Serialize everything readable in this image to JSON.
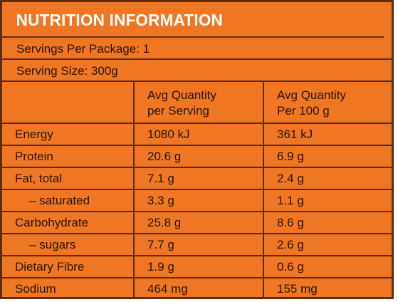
{
  "title": "NUTRITION INFORMATION",
  "servings_per_package": "Servings Per Package: 1",
  "serving_size": "Serving Size: 300g",
  "columns": [
    [
      "Avg Quantity",
      "per Serving"
    ],
    [
      "Avg Quantity",
      "Per 100 g"
    ]
  ],
  "rows": [
    {
      "nutrient": "Energy",
      "per_serving": "1080 kJ",
      "per_100g": "361 kJ"
    },
    {
      "nutrient": "Protein",
      "per_serving": "20.6 g",
      "per_100g": "6.9 g"
    },
    {
      "nutrient": "Fat, total",
      "per_serving": "7.1 g",
      "per_100g": "2.4 g"
    },
    {
      "nutrient": "– saturated",
      "per_serving": "3.3 g",
      "per_100g": "1.1 g"
    },
    {
      "nutrient": "Carbohydrate",
      "per_serving": "25.8 g",
      "per_100g": "8.6 g"
    },
    {
      "nutrient": "– sugars",
      "per_serving": "7.7 g",
      "per_100g": "2.6 g"
    },
    {
      "nutrient": "Dietary Fibre",
      "per_serving": "1.9 g",
      "per_100g": "0.6 g"
    },
    {
      "nutrient": "Sodium",
      "per_serving": "464 mg",
      "per_100g": "155 mg"
    }
  ],
  "colors": {
    "panel_background": "#ef7622",
    "border": "#5a2d10",
    "title_text": "#ffffff",
    "body_text": "#2a1608"
  }
}
